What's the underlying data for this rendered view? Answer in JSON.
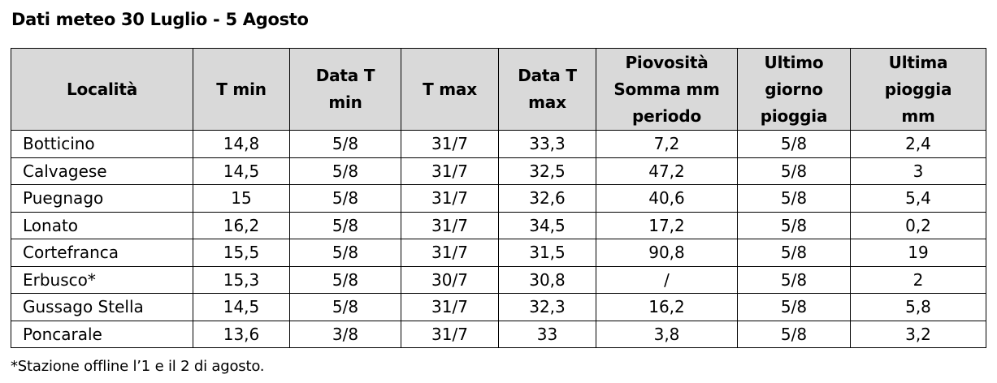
{
  "title": "Dati meteo 30 Luglio - 5 Agosto",
  "table": {
    "headers": [
      [
        "Località"
      ],
      [
        "T min"
      ],
      [
        "Data T",
        "min"
      ],
      [
        "T max"
      ],
      [
        "Data T",
        "max"
      ],
      [
        "Piovosità",
        "Somma mm",
        "periodo"
      ],
      [
        "Ultimo",
        "giorno",
        "pioggia"
      ],
      [
        "Ultima",
        "pioggia",
        "mm"
      ]
    ],
    "rows": [
      [
        "Botticino",
        "14,8",
        "5/8",
        "31/7",
        "33,3",
        "7,2",
        "5/8",
        "2,4"
      ],
      [
        "Calvagese",
        "14,5",
        "5/8",
        "31/7",
        "32,5",
        "47,2",
        "5/8",
        "3"
      ],
      [
        "Puegnago",
        "15",
        "5/8",
        "31/7",
        "32,6",
        "40,6",
        "5/8",
        "5,4"
      ],
      [
        "Lonato",
        "16,2",
        "5/8",
        "31/7",
        "34,5",
        "17,2",
        "5/8",
        "0,2"
      ],
      [
        "Cortefranca",
        "15,5",
        "5/8",
        "31/7",
        "31,5",
        "90,8",
        "5/8",
        "19"
      ],
      [
        "Erbusco*",
        "15,3",
        "5/8",
        "30/7",
        "30,8",
        "/",
        "5/8",
        "2"
      ],
      [
        "Gussago Stella",
        "14,5",
        "5/8",
        "31/7",
        "32,3",
        "16,2",
        "5/8",
        "5,8"
      ],
      [
        "Poncarale",
        "13,6",
        "3/8",
        "31/7",
        "33",
        "3,8",
        "5/8",
        "3,2"
      ]
    ]
  },
  "footnote": "*Stazione offline l’1 e il 2 di agosto."
}
